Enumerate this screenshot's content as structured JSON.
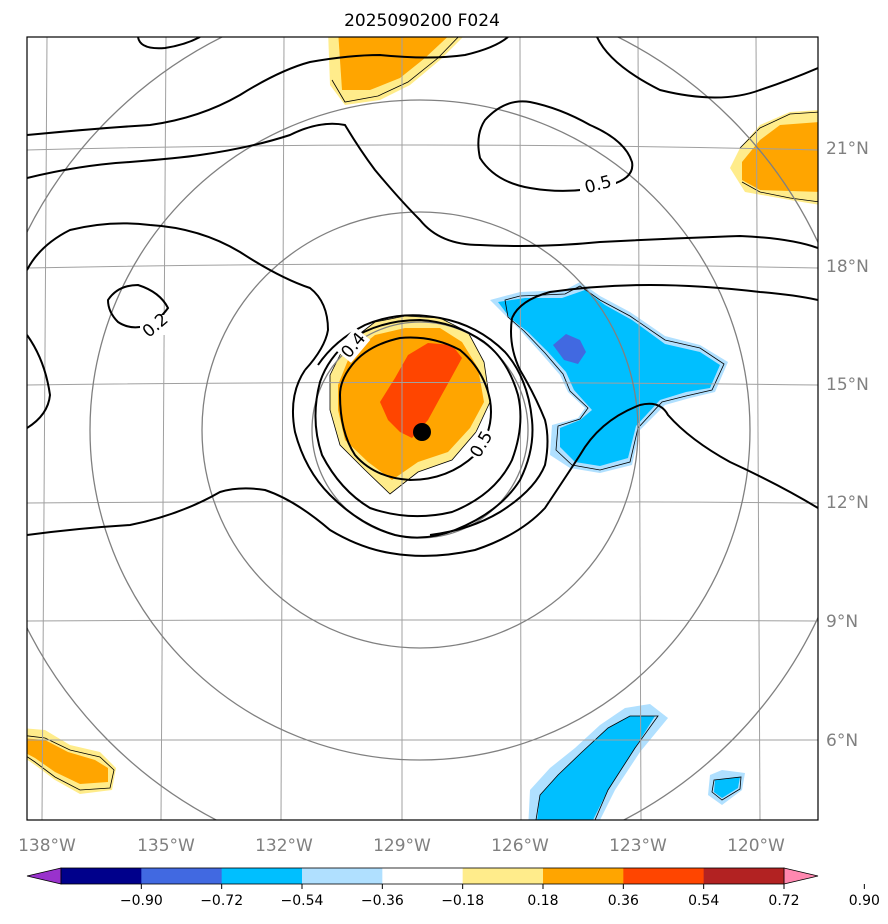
{
  "title": "2025090200 F024",
  "chart_data": {
    "type": "contour_map",
    "projection": "orthographic centered on storm",
    "lon_ticks": [
      "138°W",
      "135°W",
      "132°W",
      "129°W",
      "126°W",
      "123°W",
      "120°W"
    ],
    "lat_ticks": [
      "21°N",
      "18°N",
      "15°N",
      "12°N",
      "9°N",
      "6°N"
    ],
    "storm_center": {
      "lon": -128.5,
      "lat": 13.8
    },
    "contour_labels": [
      "0.5",
      "0.2",
      "0.4",
      "0.5"
    ],
    "colorbar": {
      "ticks": [
        "−0.90",
        "−0.72",
        "−0.54",
        "−0.36",
        "−0.18",
        "0.18",
        "0.36",
        "0.54",
        "0.72",
        "0.90"
      ],
      "colors": [
        "#9932CC",
        "#00008B",
        "#4169E1",
        "#00BFFF",
        "#B0E0FF",
        "#FFFFFF",
        "#FFEC8B",
        "#FFA500",
        "#FF4500",
        "#B22222",
        "#FF88B0"
      ],
      "extend": "both"
    }
  },
  "colors": {
    "grid": "#a0a0a0",
    "range_ring": "#808080",
    "contour": "#000000"
  }
}
